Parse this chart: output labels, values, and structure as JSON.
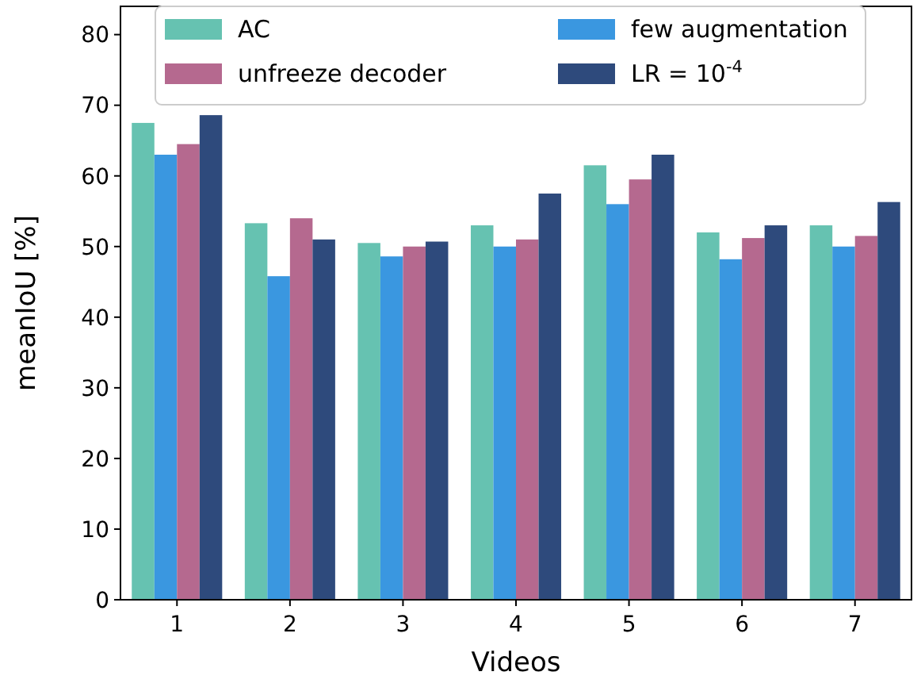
{
  "chart_data": {
    "type": "bar",
    "xlabel": "Videos",
    "ylabel": "meanIoU [%]",
    "categories": [
      "1",
      "2",
      "3",
      "4",
      "5",
      "6",
      "7"
    ],
    "series": [
      {
        "name": "AC",
        "color": "#66c2b1",
        "values": [
          67.5,
          53.3,
          50.5,
          53,
          61.5,
          52,
          53
        ]
      },
      {
        "name": "few augmentation",
        "color": "#3a97e0",
        "values": [
          63,
          45.8,
          48.6,
          50,
          56,
          48.2,
          50
        ]
      },
      {
        "name": "unfreeze decoder",
        "color": "#b5698f",
        "values": [
          64.5,
          54,
          50,
          51,
          59.5,
          51.2,
          51.5
        ]
      },
      {
        "name": "LR = 10$^{-4}$",
        "color": "#2e4a7c",
        "values": [
          68.6,
          51,
          50.7,
          57.5,
          63,
          53,
          56.3
        ]
      }
    ],
    "ylim": [
      0,
      84
    ],
    "yticks": [
      0,
      10,
      20,
      30,
      40,
      50,
      60,
      70,
      80
    ],
    "legend": "top"
  }
}
